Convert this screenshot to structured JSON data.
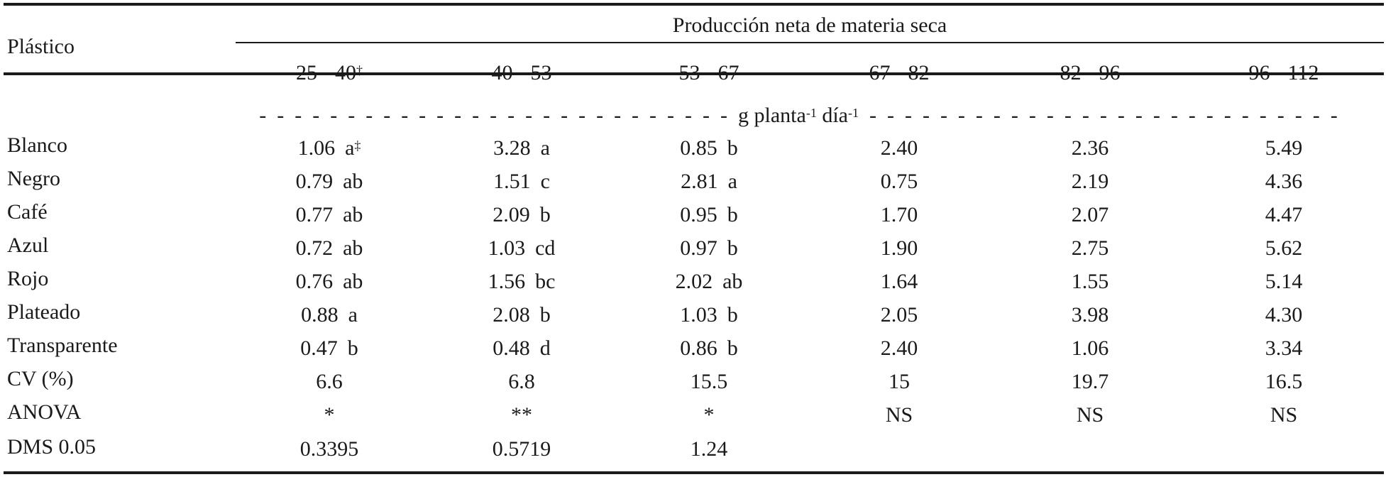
{
  "header": {
    "row_label": "Plástico",
    "group_title": "Producción neta de materia seca",
    "columns": [
      "25 - 40",
      "40 - 53",
      "53 - 67",
      "67 - 82",
      "82 - 96",
      "96 - 112"
    ],
    "first_column_mark": "†"
  },
  "units": {
    "prefix": "g planta",
    "exp1": "-1",
    "mid": " día",
    "exp2": "-1"
  },
  "rows": [
    {
      "label": "Blanco",
      "values": [
        "1.06",
        "3.28",
        "0.85",
        "2.40",
        "2.36",
        "5.49"
      ],
      "letters": [
        "a",
        "a",
        "b",
        "",
        "",
        ""
      ],
      "mark": "‡"
    },
    {
      "label": "Negro",
      "values": [
        "0.79",
        "1.51",
        "2.81",
        "0.75",
        "2.19",
        "4.36"
      ],
      "letters": [
        "ab",
        "c",
        "a",
        "",
        "",
        ""
      ]
    },
    {
      "label": "Café",
      "values": [
        "0.77",
        "2.09",
        "0.95",
        "1.70",
        "2.07",
        "4.47"
      ],
      "letters": [
        "ab",
        "b",
        "b",
        "",
        "",
        ""
      ]
    },
    {
      "label": "Azul",
      "values": [
        "0.72",
        "1.03",
        "0.97",
        "1.90",
        "2.75",
        "5.62"
      ],
      "letters": [
        "ab",
        "cd",
        "b",
        "",
        "",
        ""
      ]
    },
    {
      "label": "Rojo",
      "values": [
        "0.76",
        "1.56",
        "2.02",
        "1.64",
        "1.55",
        "5.14"
      ],
      "letters": [
        "ab",
        "bc",
        "ab",
        "",
        "",
        ""
      ]
    },
    {
      "label": "Plateado",
      "values": [
        "0.88",
        "2.08",
        "1.03",
        "2.05",
        "3.98",
        "4.30"
      ],
      "letters": [
        "a",
        "b",
        "b",
        "",
        "",
        ""
      ]
    },
    {
      "label": "Transparente",
      "values": [
        "0.47",
        "0.48",
        "0.86",
        "2.40",
        "1.06",
        "3.34"
      ],
      "letters": [
        "b",
        "d",
        "b",
        "",
        "",
        ""
      ]
    }
  ],
  "stats": [
    {
      "label": "CV (%)",
      "values": [
        "6.6",
        "6.8",
        "15.5",
        "15",
        "19.7",
        "16.5"
      ]
    },
    {
      "label": "ANOVA",
      "values": [
        "*",
        "**",
        "*",
        "NS",
        "NS",
        "NS"
      ]
    },
    {
      "label": "DMS 0.05",
      "values": [
        "0.3395",
        "0.5719",
        "1.24",
        "",
        "",
        ""
      ]
    }
  ]
}
